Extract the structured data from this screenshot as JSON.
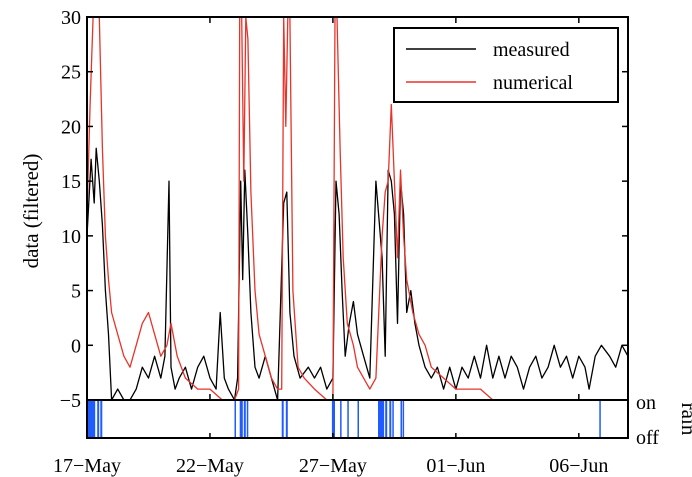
{
  "chart_data": [
    {
      "type": "line",
      "xlabel": "",
      "ylabel": "data (filtered)",
      "ylim": [
        -5,
        30
      ],
      "xlim": [
        "2013-05-17",
        "2013-06-08"
      ],
      "x_tick_labels": [
        "17−May",
        "22−May",
        "27−May",
        "01−Jun",
        "06−Jun"
      ],
      "y_tick_labels": [
        "−5",
        "0",
        "5",
        "10",
        "15",
        "20",
        "25",
        "30"
      ],
      "grid": false,
      "legend_position": "top-right",
      "series": [
        {
          "name": "measured",
          "color": "#000000",
          "points": [
            [
              "2013-05-17 00:00",
              10
            ],
            [
              "2013-05-17 04:00",
              17
            ],
            [
              "2013-05-17 07:00",
              13
            ],
            [
              "2013-05-17 09:00",
              18
            ],
            [
              "2013-05-17 12:00",
              15
            ],
            [
              "2013-05-17 15:00",
              11
            ],
            [
              "2013-05-17 18:00",
              5
            ],
            [
              "2013-05-17 21:00",
              1
            ],
            [
              "2013-05-18 00:00",
              -5
            ],
            [
              "2013-05-18 06:00",
              -4
            ],
            [
              "2013-05-18 12:00",
              -5
            ],
            [
              "2013-05-18 18:00",
              -5
            ],
            [
              "2013-05-19 00:00",
              -4
            ],
            [
              "2013-05-19 06:00",
              -2
            ],
            [
              "2013-05-19 12:00",
              -3
            ],
            [
              "2013-05-19 18:00",
              -1
            ],
            [
              "2013-05-20 00:00",
              -3
            ],
            [
              "2013-05-20 04:00",
              -1
            ],
            [
              "2013-05-20 08:00",
              15
            ],
            [
              "2013-05-20 10:00",
              -2
            ],
            [
              "2013-05-20 14:00",
              -4
            ],
            [
              "2013-05-20 18:00",
              -3
            ],
            [
              "2013-05-21 00:00",
              -2
            ],
            [
              "2013-05-21 06:00",
              -4
            ],
            [
              "2013-05-21 12:00",
              -2
            ],
            [
              "2013-05-21 18:00",
              -1
            ],
            [
              "2013-05-22 00:00",
              -3
            ],
            [
              "2013-05-22 06:00",
              -4
            ],
            [
              "2013-05-22 10:00",
              3
            ],
            [
              "2013-05-22 14:00",
              -3
            ],
            [
              "2013-05-22 18:00",
              -4
            ],
            [
              "2013-05-23 00:00",
              -5
            ],
            [
              "2013-05-23 03:00",
              -3
            ],
            [
              "2013-05-23 06:00",
              15
            ],
            [
              "2013-05-23 08:00",
              6
            ],
            [
              "2013-05-23 10:00",
              16
            ],
            [
              "2013-05-23 13:00",
              10
            ],
            [
              "2013-05-23 16:00",
              3
            ],
            [
              "2013-05-23 20:00",
              -2
            ],
            [
              "2013-05-24 00:00",
              -3
            ],
            [
              "2013-05-24 06:00",
              -1
            ],
            [
              "2013-05-24 12:00",
              -3
            ],
            [
              "2013-05-24 18:00",
              -5
            ],
            [
              "2013-05-25 00:00",
              13
            ],
            [
              "2013-05-25 03:00",
              14
            ],
            [
              "2013-05-25 06:00",
              3
            ],
            [
              "2013-05-25 10:00",
              -1
            ],
            [
              "2013-05-25 16:00",
              -3
            ],
            [
              "2013-05-26 00:00",
              -2
            ],
            [
              "2013-05-26 06:00",
              -3
            ],
            [
              "2013-05-26 12:00",
              -2
            ],
            [
              "2013-05-26 18:00",
              -4
            ],
            [
              "2013-05-27 00:00",
              -3
            ],
            [
              "2013-05-27 03:00",
              15
            ],
            [
              "2013-05-27 06:00",
              12
            ],
            [
              "2013-05-27 09:00",
              5
            ],
            [
              "2013-05-27 12:00",
              -1
            ],
            [
              "2013-05-27 16:00",
              2
            ],
            [
              "2013-05-27 20:00",
              4
            ],
            [
              "2013-05-28 00:00",
              1
            ],
            [
              "2013-05-28 06:00",
              -1
            ],
            [
              "2013-05-28 12:00",
              -3
            ],
            [
              "2013-05-28 18:00",
              15
            ],
            [
              "2013-05-29 00:00",
              8
            ],
            [
              "2013-05-29 03:00",
              -1
            ],
            [
              "2013-05-29 06:00",
              16
            ],
            [
              "2013-05-29 09:00",
              15
            ],
            [
              "2013-05-29 12:00",
              12
            ],
            [
              "2013-05-29 15:00",
              2
            ],
            [
              "2013-05-29 18:00",
              15
            ],
            [
              "2013-05-29 21:00",
              12
            ],
            [
              "2013-05-30 00:00",
              3
            ],
            [
              "2013-05-30 04:00",
              5
            ],
            [
              "2013-05-30 08:00",
              2
            ],
            [
              "2013-05-30 12:00",
              0
            ],
            [
              "2013-05-30 18:00",
              -2
            ],
            [
              "2013-05-31 00:00",
              -3
            ],
            [
              "2013-05-31 06:00",
              -2
            ],
            [
              "2013-05-31 12:00",
              -4
            ],
            [
              "2013-05-31 18:00",
              -2
            ],
            [
              "2013-06-01 00:00",
              -4
            ],
            [
              "2013-06-01 06:00",
              -2
            ],
            [
              "2013-06-01 12:00",
              -3
            ],
            [
              "2013-06-01 18:00",
              -1
            ],
            [
              "2013-06-02 00:00",
              -3
            ],
            [
              "2013-06-02 06:00",
              0
            ],
            [
              "2013-06-02 12:00",
              -3
            ],
            [
              "2013-06-02 18:00",
              -1
            ],
            [
              "2013-06-03 00:00",
              -3
            ],
            [
              "2013-06-03 06:00",
              -1
            ],
            [
              "2013-06-03 12:00",
              -2
            ],
            [
              "2013-06-03 18:00",
              -4
            ],
            [
              "2013-06-04 00:00",
              -2
            ],
            [
              "2013-06-04 06:00",
              -1
            ],
            [
              "2013-06-04 12:00",
              -3
            ],
            [
              "2013-06-04 18:00",
              -2
            ],
            [
              "2013-06-05 00:00",
              0
            ],
            [
              "2013-06-05 06:00",
              -2
            ],
            [
              "2013-06-05 12:00",
              -1
            ],
            [
              "2013-06-05 18:00",
              -3
            ],
            [
              "2013-06-06 00:00",
              -1
            ],
            [
              "2013-06-06 06:00",
              -2
            ],
            [
              "2013-06-06 10:00",
              -4
            ],
            [
              "2013-06-06 16:00",
              -1
            ],
            [
              "2013-06-06 22:00",
              0
            ],
            [
              "2013-06-07 06:00",
              -1
            ],
            [
              "2013-06-07 12:00",
              -2
            ],
            [
              "2013-06-07 18:00",
              0
            ],
            [
              "2013-06-08 00:00",
              -1
            ]
          ]
        },
        {
          "name": "numerical",
          "color": "#e8332a",
          "points": [
            [
              "2013-05-17 00:00",
              12
            ],
            [
              "2013-05-17 03:00",
              22
            ],
            [
              "2013-05-17 06:00",
              30
            ],
            [
              "2013-05-17 09:00",
              30
            ],
            [
              "2013-05-17 12:00",
              30
            ],
            [
              "2013-05-17 15:00",
              18
            ],
            [
              "2013-05-17 18:00",
              10
            ],
            [
              "2013-05-17 21:00",
              6
            ],
            [
              "2013-05-18 00:00",
              3
            ],
            [
              "2013-05-18 06:00",
              1
            ],
            [
              "2013-05-18 12:00",
              -1
            ],
            [
              "2013-05-18 18:00",
              -2
            ],
            [
              "2013-05-19 00:00",
              0
            ],
            [
              "2013-05-19 06:00",
              2
            ],
            [
              "2013-05-19 12:00",
              3
            ],
            [
              "2013-05-19 18:00",
              1
            ],
            [
              "2013-05-20 00:00",
              -1
            ],
            [
              "2013-05-20 06:00",
              0
            ],
            [
              "2013-05-20 10:00",
              2
            ],
            [
              "2013-05-20 16:00",
              -1
            ],
            [
              "2013-05-21 00:00",
              -3
            ],
            [
              "2013-05-21 12:00",
              -4
            ],
            [
              "2013-05-22 00:00",
              -4
            ],
            [
              "2013-05-22 12:00",
              -5
            ],
            [
              "2013-05-23 00:00",
              -5
            ],
            [
              "2013-05-23 04:00",
              -4
            ],
            [
              "2013-05-23 05:00",
              30
            ],
            [
              "2013-05-23 07:00",
              30
            ],
            [
              "2013-05-23 09:00",
              15
            ],
            [
              "2013-05-23 11:00",
              30
            ],
            [
              "2013-05-23 13:00",
              28
            ],
            [
              "2013-05-23 16:00",
              14
            ],
            [
              "2013-05-23 20:00",
              5
            ],
            [
              "2013-05-24 00:00",
              1
            ],
            [
              "2013-05-24 06:00",
              -1
            ],
            [
              "2013-05-24 12:00",
              -3
            ],
            [
              "2013-05-24 18:00",
              -4
            ],
            [
              "2013-05-24 22:00",
              -4
            ],
            [
              "2013-05-25 00:00",
              30
            ],
            [
              "2013-05-25 02:00",
              20
            ],
            [
              "2013-05-25 04:00",
              30
            ],
            [
              "2013-05-25 06:00",
              30
            ],
            [
              "2013-05-25 09:00",
              5
            ],
            [
              "2013-05-25 14:00",
              -2
            ],
            [
              "2013-05-25 20:00",
              -3
            ],
            [
              "2013-05-26 06:00",
              -4
            ],
            [
              "2013-05-26 18:00",
              -5
            ],
            [
              "2013-05-27 00:00",
              -5
            ],
            [
              "2013-05-27 02:00",
              30
            ],
            [
              "2013-05-27 04:00",
              30
            ],
            [
              "2013-05-27 07:00",
              18
            ],
            [
              "2013-05-27 10:00",
              8
            ],
            [
              "2013-05-27 14:00",
              2
            ],
            [
              "2013-05-27 20:00",
              0
            ],
            [
              "2013-05-28 00:00",
              -2
            ],
            [
              "2013-05-28 06:00",
              -3
            ],
            [
              "2013-05-28 12:00",
              -4
            ],
            [
              "2013-05-28 18:00",
              -3
            ],
            [
              "2013-05-29 00:00",
              10
            ],
            [
              "2013-05-29 03:00",
              14
            ],
            [
              "2013-05-29 06:00",
              15
            ],
            [
              "2013-05-29 09:00",
              22
            ],
            [
              "2013-05-29 12:00",
              15
            ],
            [
              "2013-05-29 15:00",
              8
            ],
            [
              "2013-05-29 18:00",
              16
            ],
            [
              "2013-05-29 21:00",
              10
            ],
            [
              "2013-05-30 00:00",
              6
            ],
            [
              "2013-05-30 06:00",
              3
            ],
            [
              "2013-05-30 12:00",
              1
            ],
            [
              "2013-05-30 18:00",
              0
            ],
            [
              "2013-05-31 00:00",
              -2
            ],
            [
              "2013-05-31 12:00",
              -3
            ],
            [
              "2013-06-01 00:00",
              -4
            ],
            [
              "2013-06-01 12:00",
              -4
            ],
            [
              "2013-06-02 00:00",
              -4
            ],
            [
              "2013-06-02 12:00",
              -5
            ],
            [
              "2013-06-03 00:00",
              -5
            ],
            [
              "2013-06-03 12:00",
              -5
            ],
            [
              "2013-06-04 00:00",
              -5
            ],
            [
              "2013-06-05 00:00",
              -5
            ],
            [
              "2013-06-06 00:00",
              -5
            ],
            [
              "2013-06-06 12:00",
              -5
            ],
            [
              "2013-06-07 00:00",
              -5
            ],
            [
              "2013-06-08 00:00",
              -5
            ]
          ]
        }
      ]
    },
    {
      "type": "area",
      "ylabel": "rain",
      "y_tick_labels": [
        "on",
        "off"
      ],
      "color": "#1f5bff",
      "series": [
        {
          "name": "",
          "rain_events": [
            [
              "2013-05-17 00:00",
              "2013-05-17 08:00"
            ],
            [
              "2013-05-17 10:00",
              "2013-05-17 12:00"
            ],
            [
              "2013-05-17 13:00",
              "2013-05-17 15:00"
            ],
            [
              "2013-05-23 00:00",
              "2013-05-23 01:00"
            ],
            [
              "2013-05-23 05:00",
              "2013-05-23 08:00"
            ],
            [
              "2013-05-23 09:00",
              "2013-05-23 11:00"
            ],
            [
              "2013-05-23 12:00",
              "2013-05-23 13:00"
            ],
            [
              "2013-05-24 22:00",
              "2013-05-25 00:00"
            ],
            [
              "2013-05-25 02:00",
              "2013-05-25 04:00"
            ],
            [
              "2013-05-26 23:00",
              "2013-05-27 02:00"
            ],
            [
              "2013-05-27 07:00",
              "2013-05-27 08:00"
            ],
            [
              "2013-05-27 14:00",
              "2013-05-27 15:00"
            ],
            [
              "2013-05-28 00:00",
              "2013-05-28 01:00"
            ],
            [
              "2013-05-28 20:00",
              "2013-05-29 02:00"
            ],
            [
              "2013-05-29 03:00",
              "2013-05-29 05:00"
            ],
            [
              "2013-05-29 07:00",
              "2013-05-29 09:00"
            ],
            [
              "2013-05-29 10:00",
              "2013-05-29 11:00"
            ],
            [
              "2013-05-29 18:00",
              "2013-05-29 19:00"
            ],
            [
              "2013-05-29 20:00",
              "2013-05-29 21:00"
            ],
            [
              "2013-06-06 20:00",
              "2013-06-06 21:00"
            ]
          ]
        }
      ]
    }
  ]
}
